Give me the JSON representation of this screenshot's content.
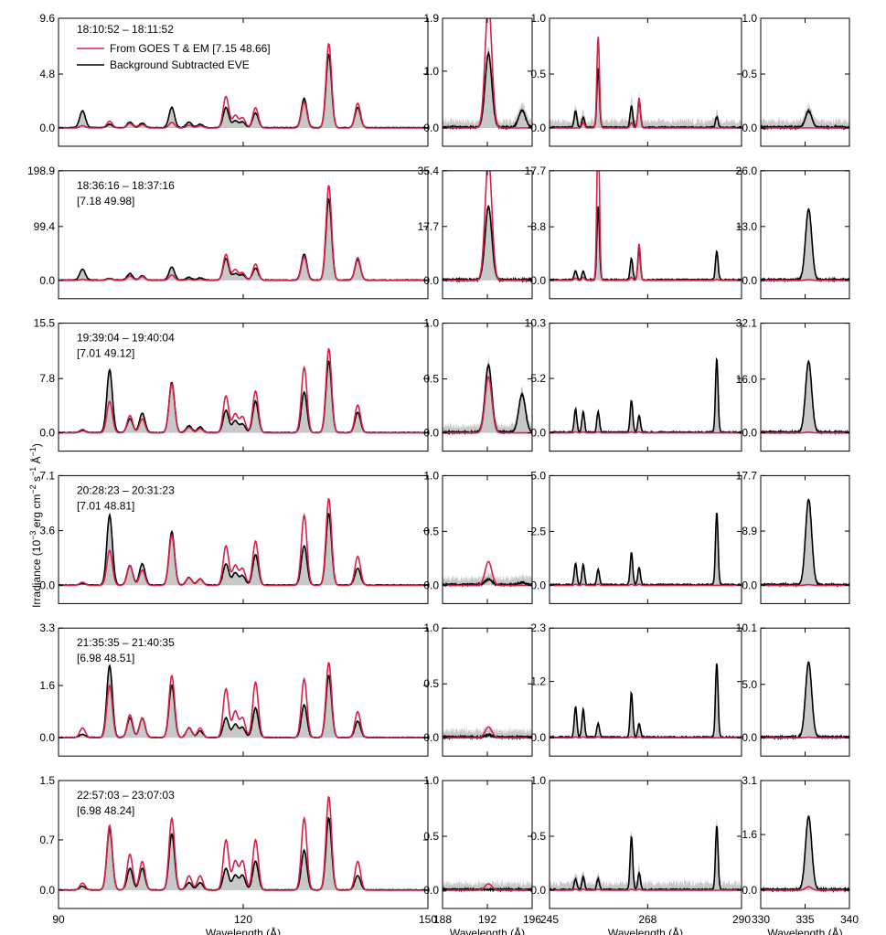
{
  "figure": {
    "ylabel_main": "Irradiance (10",
    "ylabel_exp1": "−3",
    "ylabel_mid": " erg cm",
    "ylabel_exp2": "−2",
    "ylabel_mid2": " s",
    "ylabel_exp3": "−1",
    "ylabel_mid3": " Å",
    "ylabel_exp4": "−1",
    "ylabel_end": ")",
    "legend": {
      "model_label": "From GOES T & EM [7.15 48.66]",
      "eve_label": "Background Subtracted EVE",
      "model_color": "#d6204a",
      "eve_color": "#000000"
    },
    "colors": {
      "model": "#d6204a",
      "eve": "#000000",
      "uncertainty": "#c8c8c8"
    }
  },
  "chart_data": [
    {
      "type": "line",
      "row_labels": [
        {
          "time": "18:10:52 – 18:11:52",
          "params": ""
        },
        {
          "time": "18:36:16 – 18:37:16",
          "params": "[7.18 49.98]"
        },
        {
          "time": "19:39:04 – 19:40:04",
          "params": "[7.01 49.12]"
        },
        {
          "time": "20:28:23 – 20:31:23",
          "params": "[7.01 48.81]"
        },
        {
          "time": "21:35:35 – 21:40:35",
          "params": "[6.98 48.51]"
        },
        {
          "time": "22:57:03 – 23:07:03",
          "params": "[6.98 48.24]"
        }
      ],
      "columns": [
        {
          "xlabel": "Wavelength (Å)",
          "xlim": [
            90,
            150
          ],
          "xticks": [
            "90",
            "120",
            "150"
          ],
          "ylims": [
            9.6,
            198.9,
            15.5,
            7.1,
            3.3,
            1.5
          ],
          "yticks": [
            [
              "0.0",
              "4.8",
              "9.6"
            ],
            [
              "0.0",
              "99.4",
              "198.9"
            ],
            [
              "0.0",
              "7.8",
              "15.5"
            ],
            [
              "0.0",
              "3.6",
              "7.1"
            ],
            [
              "0.0",
              "1.6",
              "3.3"
            ],
            [
              "0.0",
              "0.7",
              "1.5"
            ]
          ],
          "peak_x": [
            93.9,
            98.3,
            101.6,
            103.6,
            108.4,
            111.2,
            113.0,
            117.2,
            118.7,
            119.9,
            122.0,
            129.9,
            133.9,
            138.6
          ],
          "peak_width": 0.45,
          "rows": [
            {
              "model": [
                0.2,
                0.6,
                0.4,
                0.3,
                0.5,
                0.25,
                0.2,
                2.8,
                1.1,
                0.9,
                1.8,
                2.3,
                7.5,
                2.2
              ],
              "eve": [
                1.5,
                0.3,
                0.5,
                0.4,
                1.8,
                0.5,
                0.3,
                1.8,
                0.6,
                0.5,
                1.3,
                2.6,
                6.5,
                1.8
              ]
            },
            {
              "model": [
                2.0,
                3.0,
                8.0,
                7.0,
                10.0,
                2.0,
                2.0,
                48.0,
                20.0,
                14.0,
                30.0,
                43.0,
                175.0,
                42.0
              ],
              "eve": [
                20.0,
                3.0,
                12.0,
                8.0,
                24.0,
                5.0,
                4.0,
                40.0,
                12.0,
                10.0,
                22.0,
                48.0,
                150.0,
                38.0
              ]
            },
            {
              "model": [
                0.5,
                4.5,
                2.5,
                2.0,
                7.0,
                0.8,
                0.6,
                5.3,
                2.7,
                2.3,
                6.0,
                9.4,
                12.1,
                4.0
              ],
              "eve": [
                0.3,
                9.0,
                2.0,
                2.8,
                7.2,
                1.0,
                0.8,
                3.2,
                1.7,
                1.2,
                4.5,
                5.8,
                10.3,
                2.9
              ]
            },
            {
              "model": [
                0.2,
                2.3,
                1.3,
                1.0,
                3.3,
                0.5,
                0.4,
                2.6,
                1.3,
                1.1,
                2.9,
                4.6,
                5.7,
                1.9
              ],
              "eve": [
                0.1,
                4.6,
                1.3,
                1.4,
                3.5,
                0.5,
                0.4,
                1.4,
                0.8,
                0.6,
                2.0,
                2.6,
                4.7,
                1.1
              ]
            },
            {
              "model": [
                0.3,
                1.6,
                0.7,
                0.6,
                1.9,
                0.3,
                0.3,
                1.5,
                0.8,
                0.6,
                1.7,
                1.8,
                2.3,
                0.8
              ],
              "eve": [
                0.1,
                2.2,
                0.6,
                0.6,
                1.6,
                0.3,
                0.2,
                0.6,
                0.4,
                0.3,
                0.9,
                1.0,
                1.9,
                0.5
              ]
            },
            {
              "model": [
                0.1,
                0.9,
                0.5,
                0.4,
                1.0,
                0.2,
                0.2,
                0.7,
                0.4,
                0.4,
                0.7,
                1.0,
                1.3,
                0.4
              ],
              "eve": [
                0.05,
                0.85,
                0.3,
                0.3,
                0.78,
                0.1,
                0.1,
                0.3,
                0.2,
                0.2,
                0.4,
                0.55,
                1.0,
                0.2
              ]
            }
          ]
        },
        {
          "xlabel": "Wavelength (Å)",
          "xlim": [
            188,
            196
          ],
          "xticks": [
            "188",
            "192",
            "196"
          ],
          "ylims": [
            1.9,
            35.4,
            1.0,
            1.0,
            1.0,
            1.0
          ],
          "yticks": [
            [
              "0.0",
              "1.0",
              "1.9"
            ],
            [
              "0.0",
              "17.7",
              "35.4"
            ],
            [
              "0.0",
              "0.5",
              "1.0"
            ],
            [
              "0.0",
              "0.5",
              "1.0"
            ],
            [
              "0.0",
              "0.5",
              "1.0"
            ],
            [
              "0.0",
              "0.5",
              "1.0"
            ]
          ],
          "peak_x": [
            192.1,
            195.1
          ],
          "peak_width": 0.3,
          "rows": [
            {
              "model": [
                2.2,
                0.0
              ],
              "eve": [
                1.3,
                0.3
              ]
            },
            {
              "model": [
                40.0,
                0.0
              ],
              "eve": [
                24.0,
                0.0
              ]
            },
            {
              "model": [
                0.52,
                0.0
              ],
              "eve": [
                0.62,
                0.35
              ]
            },
            {
              "model": [
                0.22,
                0.0
              ],
              "eve": [
                0.05,
                0.02
              ]
            },
            {
              "model": [
                0.1,
                0.0
              ],
              "eve": [
                0.02,
                0.0
              ]
            },
            {
              "model": [
                0.06,
                0.0
              ],
              "eve": [
                0.0,
                0.0
              ]
            }
          ]
        },
        {
          "xlabel": "Wavelength (Å)",
          "xlim": [
            245,
            290
          ],
          "xticks": [
            "245",
            "268",
            "290"
          ],
          "ylims": [
            1.0,
            17.7,
            10.3,
            5.0,
            2.3,
            1.0
          ],
          "yticks": [
            [
              "0.0",
              "0.5",
              "1.0"
            ],
            [
              "0.0",
              "8.8",
              "17.7"
            ],
            [
              "0.0",
              "5.2",
              "10.3"
            ],
            [
              "0.0",
              "2.5",
              "5.0"
            ],
            [
              "0.0",
              "1.2",
              "2.3"
            ],
            [
              "0.0",
              "0.5",
              "1.0"
            ]
          ],
          "peak_x": [
            251.1,
            252.9,
            256.4,
            264.2,
            266.0,
            284.2
          ],
          "peak_width": 0.3,
          "rows": [
            {
              "model": [
                0.0,
                0.05,
                0.85,
                0.05,
                0.28,
                0.0
              ],
              "eve": [
                0.15,
                0.1,
                0.55,
                0.2,
                0.25,
                0.1
              ]
            },
            {
              "model": [
                0.4,
                0.5,
                25.0,
                0.5,
                6.0,
                0.2
              ],
              "eve": [
                1.5,
                1.5,
                12.0,
                3.5,
                5.0,
                4.8
              ]
            },
            {
              "model": [
                0.1,
                0.1,
                0.1,
                0.1,
                0.1,
                0.0
              ],
              "eve": [
                2.2,
                2.0,
                2.0,
                3.1,
                1.6,
                7.1
              ]
            },
            {
              "model": [
                0.05,
                0.05,
                0.05,
                0.05,
                0.05,
                0.0
              ],
              "eve": [
                1.0,
                0.95,
                0.7,
                1.5,
                0.8,
                3.4
              ]
            },
            {
              "model": [
                0.02,
                0.02,
                0.02,
                0.02,
                0.02,
                0.0
              ],
              "eve": [
                0.65,
                0.6,
                0.3,
                0.95,
                0.3,
                1.6
              ]
            },
            {
              "model": [
                0.01,
                0.01,
                0.01,
                0.01,
                0.01,
                0.0
              ],
              "eve": [
                0.1,
                0.12,
                0.1,
                0.5,
                0.15,
                0.6
              ]
            }
          ]
        },
        {
          "xlabel": "Wavelength (Å)",
          "xlim": [
            330,
            340
          ],
          "xticks": [
            "330",
            "335",
            "340"
          ],
          "ylims": [
            1.0,
            26.0,
            32.1,
            17.7,
            10.1,
            3.1
          ],
          "yticks": [
            [
              "0.0",
              "0.5",
              "1.0"
            ],
            [
              "0.0",
              "13.0",
              "26.0"
            ],
            [
              "0.0",
              "16.0",
              "32.1"
            ],
            [
              "0.0",
              "8.9",
              "17.7"
            ],
            [
              "0.0",
              "5.0",
              "10.1"
            ],
            [
              "0.0",
              "1.6",
              "3.1"
            ]
          ],
          "peak_x": [
            335.4
          ],
          "peak_width": 0.35,
          "rows": [
            {
              "model": [
                0.0
              ],
              "eve": [
                0.15
              ]
            },
            {
              "model": [
                0.2
              ],
              "eve": [
                17.0
              ]
            },
            {
              "model": [
                0.2
              ],
              "eve": [
                21.0
              ]
            },
            {
              "model": [
                0.1
              ],
              "eve": [
                14.0
              ]
            },
            {
              "model": [
                0.05
              ],
              "eve": [
                7.0
              ]
            },
            {
              "model": [
                0.1
              ],
              "eve": [
                2.1
              ]
            }
          ]
        }
      ]
    }
  ]
}
